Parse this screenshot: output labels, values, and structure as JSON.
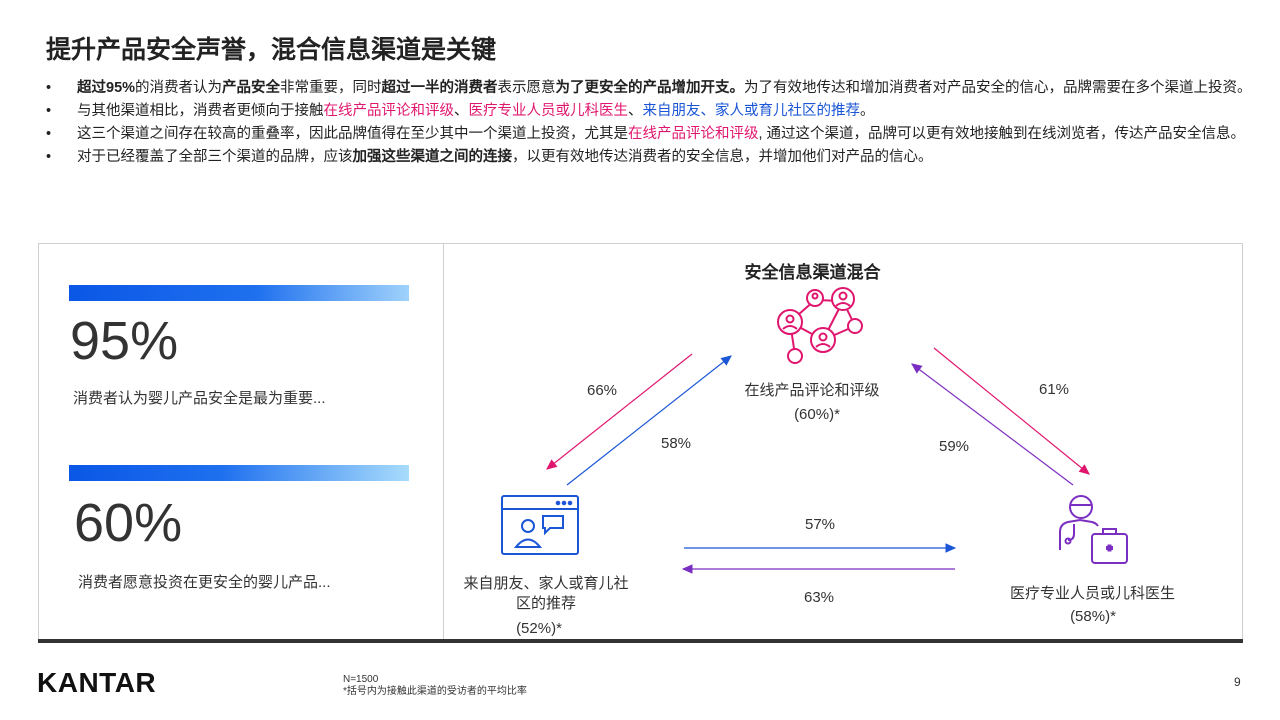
{
  "title": "提升产品安全声誉，混合信息渠道是关键",
  "bullets": [
    {
      "segments": [
        {
          "t": "超过95%",
          "s": "b"
        },
        {
          "t": "的消费者认为",
          "s": ""
        },
        {
          "t": "产品安全",
          "s": "b"
        },
        {
          "t": "非常重要，同时",
          "s": ""
        },
        {
          "t": "超过一半的消费者",
          "s": "b"
        },
        {
          "t": "表示愿意",
          "s": ""
        },
        {
          "t": "为了更安全的产品增加开支。",
          "s": "b"
        },
        {
          "t": "为了有效地传达和增加消费者对产品安全的信心，品牌需要在多个渠道上投资。",
          "s": ""
        }
      ]
    },
    {
      "segments": [
        {
          "t": "与其他渠道相比，消费者更倾向于接触",
          "s": ""
        },
        {
          "t": "在线产品评论和评级",
          "s": "pink"
        },
        {
          "t": "、",
          "s": ""
        },
        {
          "t": "医疗专业人员或儿科医生",
          "s": "pink"
        },
        {
          "t": "、",
          "s": ""
        },
        {
          "t": "来自朋友、家人或育儿社区的推荐",
          "s": "blue"
        },
        {
          "t": "。",
          "s": ""
        }
      ]
    },
    {
      "segments": [
        {
          "t": "这三个渠道之间存在较高的重叠率，因此品牌值得在至少其中一个渠道上投资，尤其是",
          "s": ""
        },
        {
          "t": "在线产品评论和评级",
          "s": "pink"
        },
        {
          "t": ", 通过这个渠道，品牌可以更有效地接触到在线浏览者，传达产品安全信息。",
          "s": ""
        }
      ]
    },
    {
      "segments": [
        {
          "t": "对于已经覆盖了全部三个渠道的品牌，应该",
          "s": ""
        },
        {
          "t": "加强这些渠道之间的连接",
          "s": "b"
        },
        {
          "t": "，以更有效地传达消费者的安全信息，并增加他们对产品的信心。",
          "s": ""
        }
      ]
    }
  ],
  "stats": [
    {
      "value": "95%",
      "desc": "消费者认为婴儿产品安全是最为重要..."
    },
    {
      "value": "60%",
      "desc": "消费者愿意投资在更安全的婴儿产品..."
    }
  ],
  "diagram": {
    "title": "安全信息渠道混合",
    "nodes": {
      "online": {
        "label": "在线产品评论和评级",
        "pct": "(60%)*"
      },
      "friends": {
        "label_line1": "来自朋友、家人或育儿社",
        "label_line2": "区的推荐",
        "pct": "(52%)*"
      },
      "medical": {
        "label": "医疗专业人员或儿科医生",
        "pct": "(58%)*"
      }
    },
    "flows": {
      "online_to_friends": "66%",
      "friends_to_online": "58%",
      "online_to_medical": "61%",
      "medical_to_online": "59%",
      "friends_to_medical": "57%",
      "medical_to_friends": "63%"
    },
    "colors": {
      "pink": "#e0166e",
      "blue": "#1a56d6",
      "purple": "#7b2fc2"
    }
  },
  "footer": {
    "logo": "KANTAR",
    "note1": "N=1500",
    "note2": "*括号内为接触此渠道的受访者的平均比率",
    "page": "9"
  }
}
